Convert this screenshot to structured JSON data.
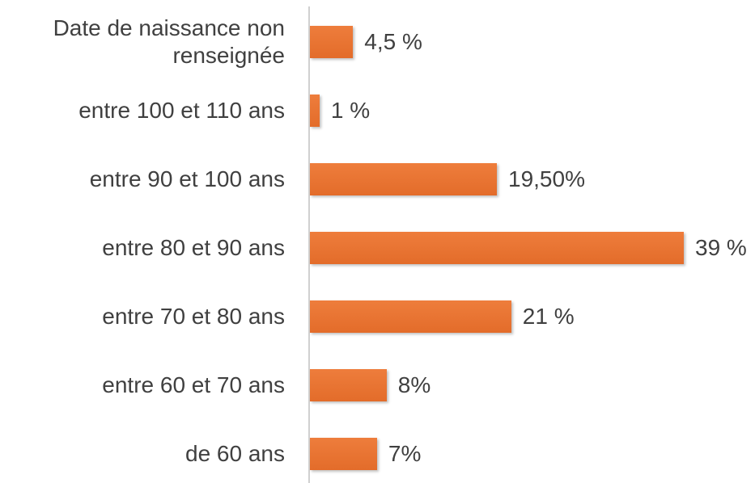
{
  "chart_data": {
    "type": "bar",
    "orientation": "horizontal",
    "categories": [
      "Date de naissance non renseignée",
      "entre 100 et 110 ans",
      "entre 90 et 100 ans",
      "entre 80 et 90 ans",
      "entre 70 et 80 ans",
      "entre 60 et 70 ans",
      "de 60 ans"
    ],
    "values": [
      4.5,
      1,
      19.5,
      39,
      21,
      8,
      7
    ],
    "value_labels": [
      "4,5 %",
      "1 %",
      "19,50%",
      "39 %",
      "21 %",
      "8%",
      "7%"
    ],
    "color": "#e36c2a"
  }
}
